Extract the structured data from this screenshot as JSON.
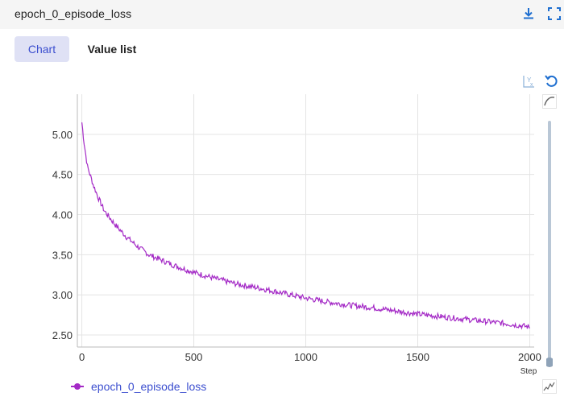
{
  "header": {
    "title": "epoch_0_episode_loss",
    "download_icon": "download-icon",
    "fullscreen_icon": "fullscreen-icon"
  },
  "tabs": [
    {
      "label": "Chart",
      "active": true
    },
    {
      "label": "Value list",
      "active": false
    }
  ],
  "toolbar": {
    "reset_y_icon": "axis-reset-icon",
    "restore_icon": "restore-icon",
    "smoothing_icon": "smoothing-curve-icon",
    "raw_icon": "raw-line-icon"
  },
  "smoothing": {
    "value": 0.0
  },
  "legend": {
    "label": "epoch_0_episode_loss"
  },
  "colors": {
    "series": "#a42ac6",
    "accent": "#3b4ecf",
    "slider": "#8fa3b8"
  },
  "chart_data": {
    "type": "line",
    "title": "",
    "xlabel": "Step",
    "ylabel": "",
    "xlim": [
      -20,
      2020
    ],
    "ylim": [
      2.35,
      5.5
    ],
    "x_ticks": [
      0,
      500,
      1000,
      1500,
      2000
    ],
    "y_ticks": [
      2.5,
      3.0,
      3.5,
      4.0,
      4.5,
      5.0
    ],
    "x_tick_labels": [
      "0",
      "500",
      "1000",
      "1500",
      "2000"
    ],
    "y_tick_labels": [
      "2.50",
      "3.00",
      "3.50",
      "4.00",
      "4.50",
      "5.00"
    ],
    "grid": true,
    "series": [
      {
        "name": "epoch_0_episode_loss",
        "x": [
          0,
          10,
          25,
          50,
          75,
          100,
          150,
          200,
          250,
          300,
          400,
          500,
          600,
          700,
          800,
          900,
          1000,
          1100,
          1200,
          1300,
          1400,
          1500,
          1600,
          1700,
          1800,
          1900,
          2000
        ],
        "y": [
          5.15,
          4.9,
          4.6,
          4.38,
          4.2,
          4.05,
          3.87,
          3.72,
          3.6,
          3.5,
          3.38,
          3.28,
          3.2,
          3.13,
          3.08,
          3.02,
          2.96,
          2.91,
          2.87,
          2.84,
          2.8,
          2.76,
          2.73,
          2.7,
          2.67,
          2.64,
          2.6
        ]
      }
    ]
  }
}
